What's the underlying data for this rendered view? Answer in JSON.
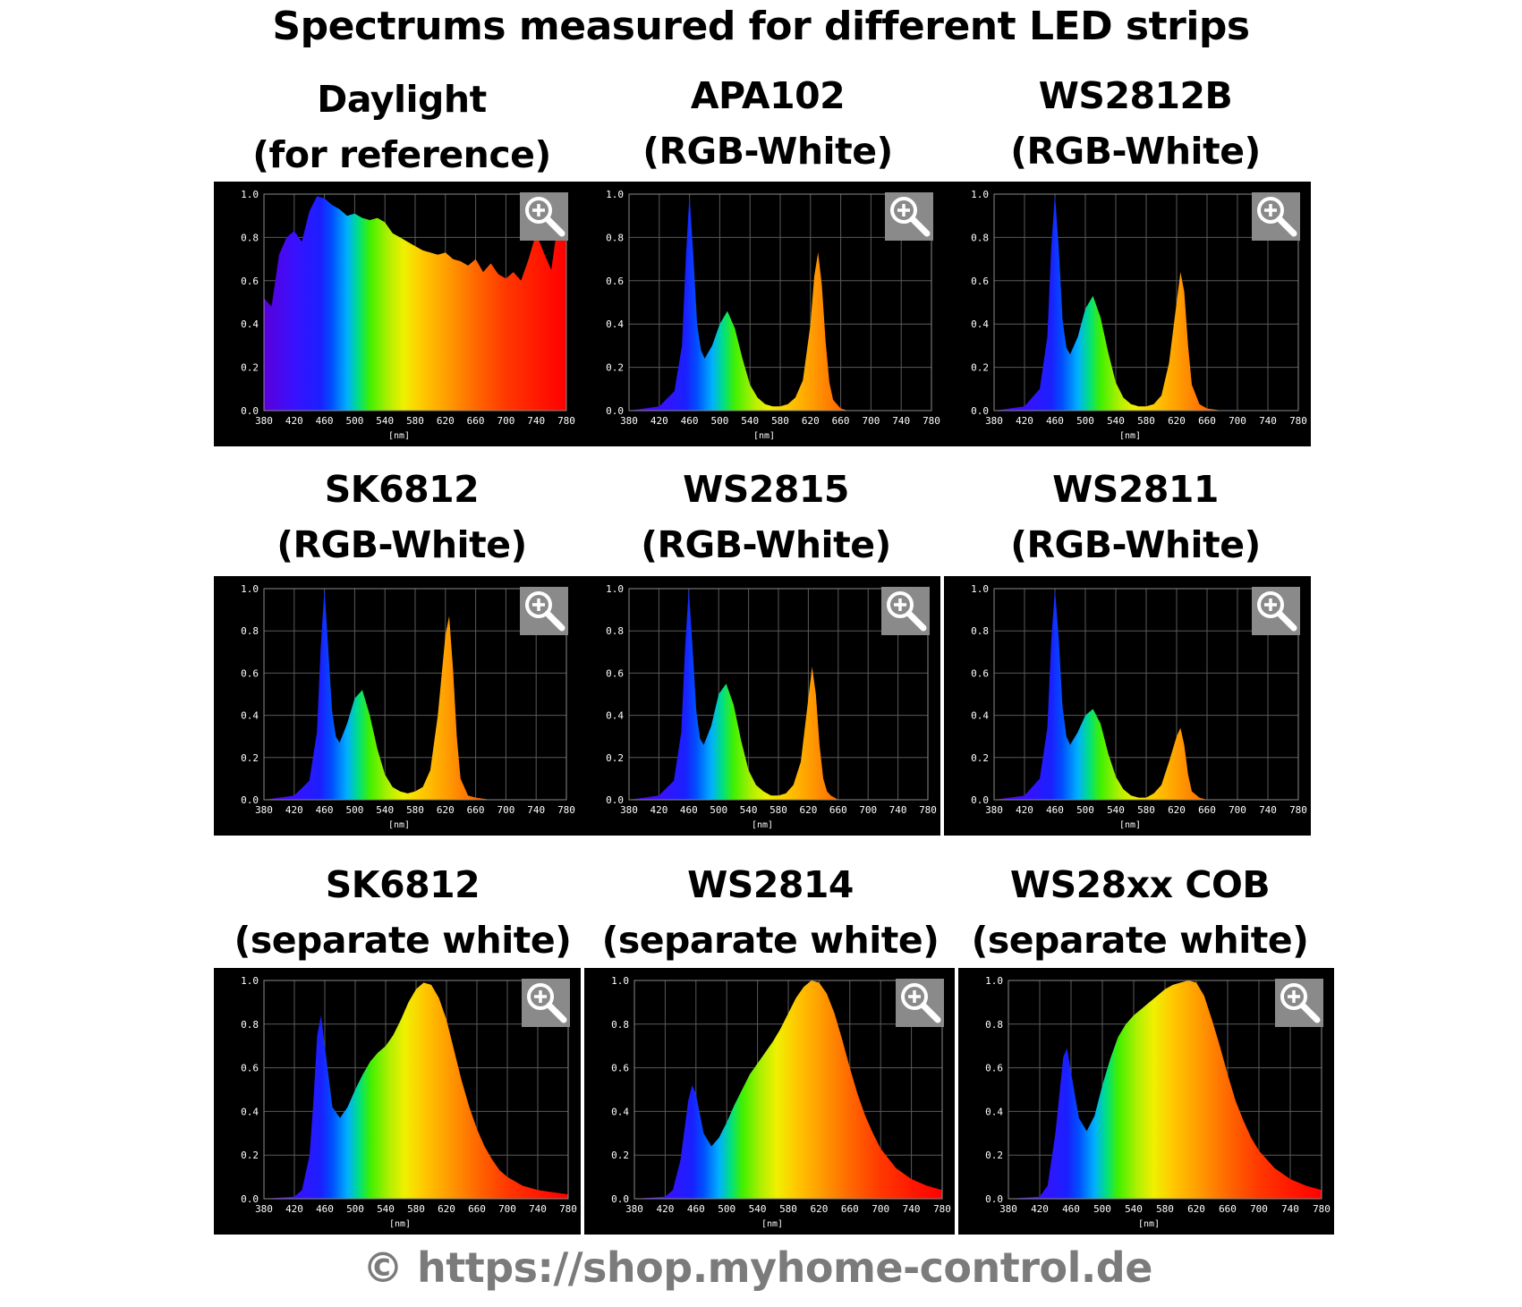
{
  "title": "Spectrums measured for different LED strips",
  "footer": "© https://shop.myhome-control.de",
  "axis": {
    "x_ticks": [
      380,
      420,
      460,
      500,
      540,
      580,
      620,
      660,
      700,
      740,
      780
    ],
    "y_ticks": [
      "0.0",
      "0.2",
      "0.4",
      "0.6",
      "0.8",
      "1.0"
    ],
    "x_unit": "[nm]",
    "xlim": [
      380,
      780
    ],
    "ylim": [
      0,
      1
    ]
  },
  "chart_data": [
    {
      "type": "area",
      "title": "Daylight",
      "subtitle": "(for reference)",
      "x": [
        380,
        390,
        400,
        410,
        420,
        430,
        440,
        450,
        460,
        470,
        480,
        490,
        500,
        510,
        520,
        530,
        540,
        550,
        560,
        570,
        580,
        590,
        600,
        610,
        620,
        630,
        640,
        650,
        660,
        670,
        680,
        690,
        700,
        710,
        720,
        730,
        740,
        750,
        760,
        770,
        780
      ],
      "y": [
        0.52,
        0.48,
        0.72,
        0.8,
        0.83,
        0.78,
        0.92,
        0.99,
        0.98,
        0.95,
        0.93,
        0.9,
        0.91,
        0.89,
        0.88,
        0.89,
        0.87,
        0.82,
        0.8,
        0.78,
        0.76,
        0.74,
        0.73,
        0.72,
        0.73,
        0.7,
        0.69,
        0.67,
        0.7,
        0.64,
        0.68,
        0.63,
        0.61,
        0.64,
        0.6,
        0.7,
        0.82,
        0.73,
        0.65,
        0.9,
        0.8
      ]
    },
    {
      "type": "area",
      "title": "APA102",
      "subtitle": "(RGB-White)",
      "x": [
        380,
        420,
        440,
        450,
        455,
        460,
        465,
        470,
        475,
        480,
        490,
        500,
        510,
        520,
        530,
        540,
        550,
        560,
        570,
        580,
        590,
        600,
        610,
        620,
        625,
        630,
        635,
        640,
        645,
        650,
        660,
        670,
        680,
        700,
        740,
        780
      ],
      "y": [
        0,
        0.02,
        0.09,
        0.3,
        0.7,
        1.0,
        0.72,
        0.4,
        0.28,
        0.24,
        0.3,
        0.4,
        0.46,
        0.38,
        0.24,
        0.12,
        0.06,
        0.03,
        0.02,
        0.02,
        0.03,
        0.06,
        0.14,
        0.4,
        0.62,
        0.73,
        0.58,
        0.32,
        0.13,
        0.05,
        0.01,
        0,
        0,
        0,
        0,
        0
      ]
    },
    {
      "type": "area",
      "title": "WS2812B",
      "subtitle": "(RGB-White)",
      "x": [
        380,
        420,
        440,
        450,
        455,
        460,
        465,
        470,
        475,
        480,
        490,
        500,
        510,
        520,
        530,
        540,
        550,
        560,
        570,
        580,
        590,
        600,
        610,
        620,
        625,
        630,
        635,
        640,
        650,
        660,
        680,
        700,
        740,
        780
      ],
      "y": [
        0,
        0.02,
        0.1,
        0.34,
        0.75,
        1.0,
        0.75,
        0.42,
        0.29,
        0.26,
        0.34,
        0.47,
        0.53,
        0.43,
        0.27,
        0.13,
        0.06,
        0.03,
        0.02,
        0.02,
        0.03,
        0.07,
        0.22,
        0.5,
        0.64,
        0.55,
        0.3,
        0.12,
        0.03,
        0.01,
        0,
        0,
        0,
        0
      ]
    },
    {
      "type": "area",
      "title": "SK6812",
      "subtitle": "(RGB-White)",
      "x": [
        380,
        420,
        440,
        450,
        455,
        460,
        465,
        470,
        475,
        480,
        490,
        500,
        510,
        520,
        530,
        540,
        550,
        560,
        570,
        580,
        590,
        600,
        610,
        620,
        625,
        630,
        635,
        640,
        650,
        660,
        680,
        700,
        740,
        780
      ],
      "y": [
        0,
        0.02,
        0.09,
        0.32,
        0.72,
        1.0,
        0.72,
        0.42,
        0.3,
        0.27,
        0.36,
        0.48,
        0.52,
        0.4,
        0.24,
        0.12,
        0.06,
        0.04,
        0.03,
        0.04,
        0.06,
        0.14,
        0.4,
        0.78,
        0.87,
        0.62,
        0.3,
        0.1,
        0.02,
        0.01,
        0,
        0,
        0,
        0
      ]
    },
    {
      "type": "area",
      "title": "WS2815",
      "subtitle": "(RGB-White)",
      "x": [
        380,
        420,
        440,
        450,
        455,
        460,
        465,
        470,
        475,
        480,
        490,
        500,
        510,
        520,
        530,
        540,
        550,
        560,
        570,
        580,
        590,
        600,
        610,
        620,
        625,
        630,
        635,
        640,
        645,
        650,
        660,
        680,
        700,
        740,
        780
      ],
      "y": [
        0,
        0.02,
        0.09,
        0.32,
        0.72,
        1.0,
        0.72,
        0.42,
        0.29,
        0.26,
        0.35,
        0.5,
        0.55,
        0.45,
        0.28,
        0.14,
        0.07,
        0.04,
        0.02,
        0.02,
        0.03,
        0.07,
        0.18,
        0.48,
        0.63,
        0.5,
        0.26,
        0.1,
        0.04,
        0.02,
        0,
        0,
        0,
        0,
        0
      ]
    },
    {
      "type": "area",
      "title": "WS2811",
      "subtitle": "(RGB-White)",
      "x": [
        380,
        420,
        440,
        450,
        455,
        460,
        465,
        470,
        475,
        480,
        490,
        500,
        510,
        520,
        530,
        540,
        550,
        560,
        570,
        580,
        590,
        600,
        610,
        620,
        625,
        630,
        635,
        640,
        650,
        660,
        680,
        700,
        740,
        780
      ],
      "y": [
        0,
        0.02,
        0.1,
        0.34,
        0.75,
        1.0,
        0.76,
        0.44,
        0.3,
        0.26,
        0.32,
        0.4,
        0.43,
        0.36,
        0.22,
        0.11,
        0.05,
        0.02,
        0.01,
        0.01,
        0.03,
        0.07,
        0.18,
        0.3,
        0.34,
        0.26,
        0.12,
        0.04,
        0.01,
        0,
        0,
        0,
        0,
        0
      ]
    },
    {
      "type": "area",
      "title": "SK6812",
      "subtitle": "(separate white)",
      "x": [
        380,
        420,
        430,
        440,
        445,
        450,
        455,
        460,
        470,
        480,
        490,
        500,
        510,
        520,
        530,
        540,
        550,
        560,
        570,
        580,
        590,
        600,
        610,
        620,
        630,
        640,
        650,
        660,
        670,
        680,
        690,
        700,
        720,
        740,
        760,
        780
      ],
      "y": [
        0,
        0.01,
        0.04,
        0.2,
        0.45,
        0.75,
        0.84,
        0.7,
        0.42,
        0.37,
        0.42,
        0.5,
        0.57,
        0.63,
        0.67,
        0.7,
        0.75,
        0.82,
        0.9,
        0.96,
        0.99,
        0.98,
        0.92,
        0.82,
        0.68,
        0.54,
        0.42,
        0.32,
        0.24,
        0.18,
        0.13,
        0.1,
        0.06,
        0.04,
        0.03,
        0.02
      ]
    },
    {
      "type": "area",
      "title": "WS2814",
      "subtitle": "(separate white)",
      "x": [
        380,
        420,
        430,
        440,
        450,
        455,
        460,
        470,
        480,
        490,
        500,
        510,
        520,
        530,
        540,
        550,
        560,
        570,
        580,
        590,
        600,
        610,
        620,
        630,
        640,
        650,
        660,
        670,
        680,
        690,
        700,
        720,
        740,
        760,
        780
      ],
      "y": [
        0,
        0.01,
        0.04,
        0.18,
        0.45,
        0.52,
        0.48,
        0.3,
        0.24,
        0.28,
        0.35,
        0.43,
        0.5,
        0.57,
        0.62,
        0.67,
        0.72,
        0.78,
        0.85,
        0.92,
        0.97,
        1.0,
        0.99,
        0.94,
        0.85,
        0.73,
        0.6,
        0.48,
        0.38,
        0.3,
        0.23,
        0.14,
        0.09,
        0.06,
        0.04
      ]
    },
    {
      "type": "area",
      "title": "WS28xx COB",
      "subtitle": "(separate white)",
      "x": [
        380,
        420,
        430,
        440,
        450,
        455,
        460,
        470,
        480,
        490,
        500,
        510,
        520,
        530,
        540,
        550,
        560,
        570,
        580,
        590,
        600,
        610,
        620,
        630,
        640,
        650,
        660,
        670,
        680,
        690,
        700,
        720,
        740,
        760,
        780
      ],
      "y": [
        0,
        0.01,
        0.06,
        0.3,
        0.65,
        0.69,
        0.58,
        0.37,
        0.31,
        0.38,
        0.52,
        0.64,
        0.74,
        0.8,
        0.84,
        0.87,
        0.9,
        0.93,
        0.96,
        0.98,
        0.99,
        1.0,
        0.99,
        0.93,
        0.82,
        0.7,
        0.57,
        0.45,
        0.36,
        0.28,
        0.22,
        0.14,
        0.09,
        0.06,
        0.04
      ]
    }
  ]
}
